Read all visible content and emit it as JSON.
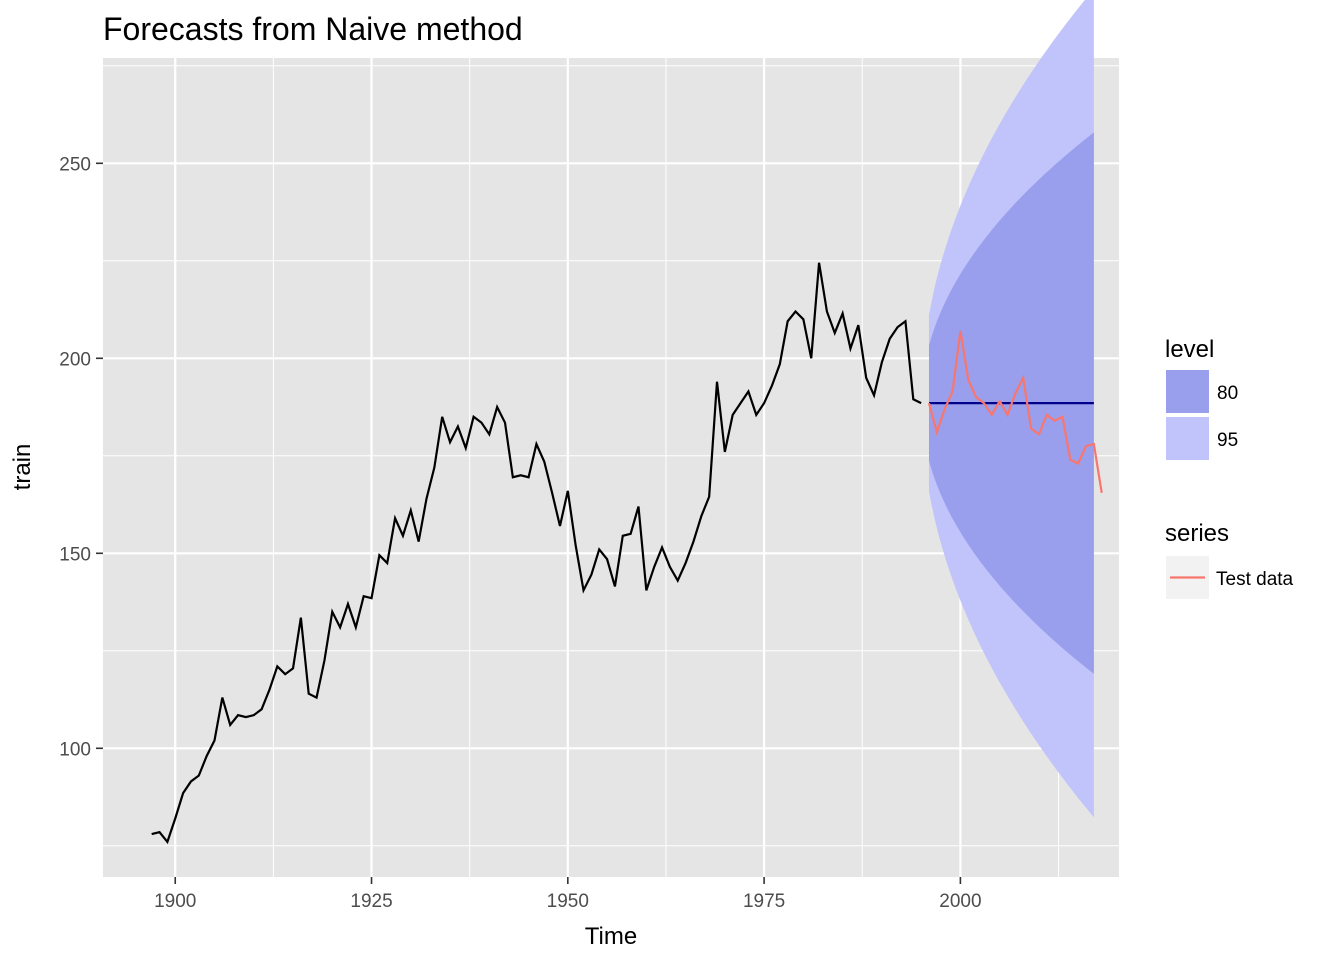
{
  "chart_data": {
    "type": "line",
    "title": "Forecasts from Naive method",
    "xlabel": "Time",
    "ylabel": "train",
    "xlim": [
      1890.8,
      2020.2
    ],
    "ylim": [
      67,
      277
    ],
    "x_ticks": [
      1900,
      1925,
      1950,
      1975,
      2000
    ],
    "x_tick_labels": [
      "1900",
      "1925",
      "1950",
      "1975",
      "2000"
    ],
    "y_ticks": [
      100,
      150,
      200,
      250
    ],
    "y_tick_labels": [
      "100",
      "150",
      "200",
      "250"
    ],
    "grid": true,
    "legend_position": "right",
    "colors": {
      "panel": "#e5e5e5",
      "grid": "#ffffff",
      "train_line": "#000000",
      "forecast_line": "#00008b",
      "band_80": "#9a9fed",
      "band_95": "#c0c4fa",
      "test_line": "#f8766d",
      "legend_key_bg": "#f2f2f2"
    },
    "train": {
      "x": [
        1897,
        1898,
        1899,
        1900,
        1901,
        1902,
        1903,
        1904,
        1905,
        1906,
        1907,
        1908,
        1909,
        1910,
        1911,
        1912,
        1913,
        1914,
        1915,
        1916,
        1917,
        1918,
        1919,
        1920,
        1921,
        1922,
        1923,
        1924,
        1925,
        1926,
        1927,
        1928,
        1929,
        1930,
        1931,
        1932,
        1933,
        1934,
        1935,
        1936,
        1937,
        1938,
        1939,
        1940,
        1941,
        1942,
        1943,
        1944,
        1945,
        1946,
        1947,
        1948,
        1949,
        1950,
        1951,
        1952,
        1953,
        1954,
        1955,
        1956,
        1957,
        1958,
        1959,
        1960,
        1961,
        1962,
        1963,
        1964,
        1965,
        1966,
        1967,
        1968,
        1969,
        1970,
        1971,
        1972,
        1973,
        1974,
        1975,
        1976,
        1977,
        1978,
        1979,
        1980,
        1981,
        1982,
        1983,
        1984,
        1985,
        1986,
        1987,
        1988,
        1989,
        1990,
        1991,
        1992,
        1993,
        1994,
        1995
      ],
      "y": [
        78,
        78.5,
        76,
        82,
        88.5,
        91.5,
        93,
        98,
        102,
        113,
        106,
        108.5,
        108,
        108.5,
        110,
        115,
        121,
        119,
        120.5,
        133.5,
        114,
        113,
        122.5,
        135,
        131,
        137,
        131,
        139,
        138.5,
        149.5,
        147.5,
        159,
        154.5,
        161,
        153,
        164,
        172,
        185,
        178.5,
        182.5,
        177,
        185,
        183.5,
        180.5,
        187.5,
        183.5,
        169.5,
        170,
        169.5,
        178,
        173.5,
        165.5,
        157,
        166,
        152,
        140.5,
        144.5,
        151,
        148.5,
        141.5,
        154.5,
        155,
        162,
        140.5,
        146.5,
        151.5,
        146.5,
        143,
        147.5,
        153,
        159.5,
        164.5,
        194,
        176,
        185.5,
        188.5,
        191.5,
        185.5,
        188.5,
        193,
        198.5,
        209.5,
        212,
        210,
        200,
        224.5,
        212,
        206.5,
        211.5,
        202.5,
        208.5,
        195,
        190.5,
        199,
        205,
        208,
        209.5,
        189.5,
        188.5
      ]
    },
    "forecast": {
      "x": [
        1996,
        2017
      ],
      "y": [
        188.5,
        188.5
      ]
    },
    "intervals": {
      "x_start": 1996,
      "x_end": 2017,
      "h_max": 22,
      "sigma": 11.55,
      "z80": 1.2816,
      "z95": 1.96
    },
    "test": {
      "x": [
        1996,
        1997,
        1998,
        1999,
        2000,
        2001,
        2002,
        2003,
        2004,
        2005,
        2006,
        2007,
        2008,
        2009,
        2010,
        2011,
        2012,
        2013,
        2014,
        2015,
        2016,
        2017,
        2018
      ],
      "y": [
        188.5,
        181,
        187,
        191.5,
        207,
        194.5,
        190,
        188.5,
        185.5,
        189,
        185.5,
        191,
        195,
        182,
        180.5,
        185.5,
        184,
        185,
        174,
        173,
        177.5,
        178,
        165.5
      ]
    },
    "legend": {
      "level_title": "level",
      "level_items": [
        "80",
        "95"
      ],
      "series_title": "series",
      "series_items": [
        "Test data"
      ]
    }
  }
}
